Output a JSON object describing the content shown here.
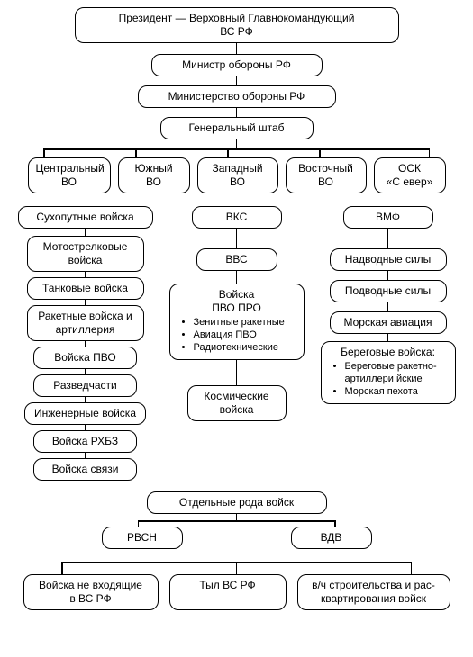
{
  "type": "org-chart",
  "background_color": "#ffffff",
  "node_style": {
    "border_color": "#000000",
    "border_width": 1.5,
    "border_radius": 10,
    "fill": "#ffffff",
    "font_family": "Arial",
    "font_size": 12,
    "text_color": "#000000"
  },
  "connector_style": {
    "color": "#000000",
    "width": 1.5
  },
  "president": "Президент — Верховный Главнокомандующий\nВС РФ",
  "minister": "Министр обороны РФ",
  "ministry": "Министерство обороны  РФ",
  "genstaff": "Генеральный штаб",
  "districts": [
    "Центральный\nВО",
    "Южный\nВО",
    "Западный\nВО",
    "Восточный\nВО",
    "ОСК\n«С евер»"
  ],
  "branches": {
    "ground": {
      "title": "Сухопутные войска",
      "children": [
        "Мотострелковые\nвойска",
        "Танковые войска",
        "Ракетные войска и\nартиллерия",
        "Войска ПВО",
        "Разведчасти",
        "Инженерные войска",
        "Войска РХБЗ",
        "Войска связи"
      ]
    },
    "vks": {
      "title": "ВКС",
      "vvs": "ВВС",
      "pvo": {
        "title": "Войска\nПВО ПРО",
        "items": [
          "Зенитные ракетные",
          "Авиация ПВО",
          "Радиотехнические"
        ]
      },
      "space": "Космические\nвойска"
    },
    "vmf": {
      "title": "ВМФ",
      "children": [
        "Надводные силы",
        "Подводные силы",
        "Морская авиация"
      ],
      "coast": {
        "title": "Береговые войска:",
        "items": [
          "Береговые ракетно-\nартиллери йские",
          "Морская  пехота"
        ]
      }
    }
  },
  "separate": {
    "title": "Отдельные рода войск",
    "rvsn": "РВСН",
    "vdv": "ВДВ"
  },
  "bottom": [
    "Войска не входящие\nв ВС РФ",
    "Тыл   ВС РФ",
    "в/ч строительства и рас-\nквартирования войск"
  ]
}
